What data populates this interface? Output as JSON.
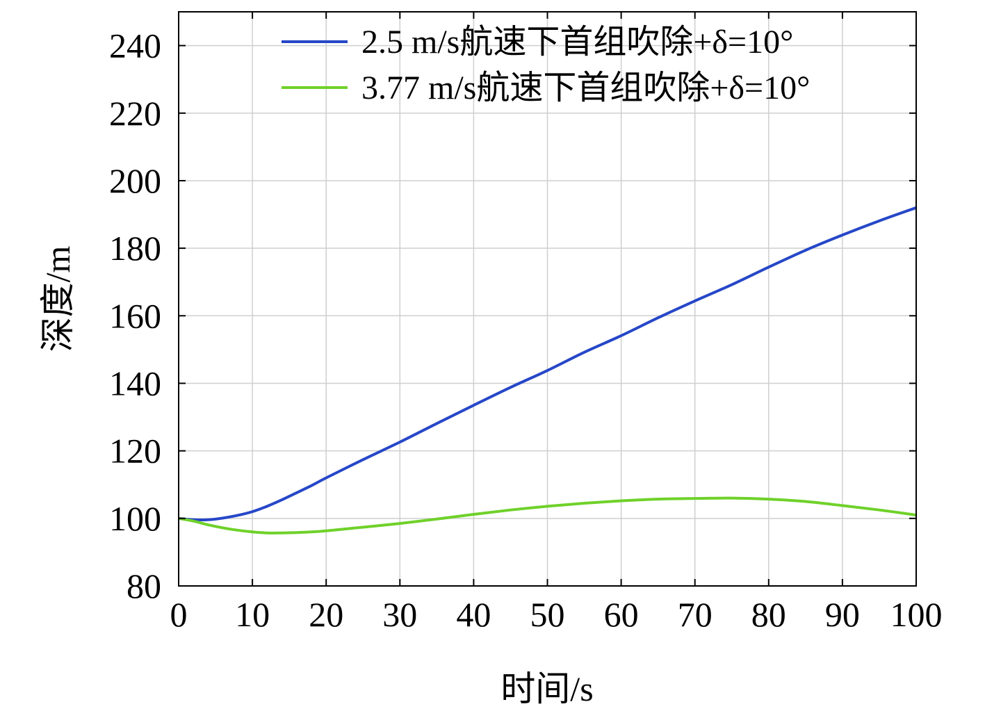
{
  "chart_data": {
    "type": "line",
    "xlabel": "时间/s",
    "ylabel": "深度/m",
    "xlim": [
      0,
      100
    ],
    "ylim": [
      80,
      250
    ],
    "xticks": [
      0,
      10,
      20,
      30,
      40,
      50,
      60,
      70,
      80,
      90,
      100
    ],
    "yticks": [
      80,
      100,
      120,
      140,
      160,
      180,
      200,
      220,
      240
    ],
    "grid": true,
    "legend_position": "top-right",
    "series": [
      {
        "name": "2.5 m/s航速下首组吹除+δ=10°",
        "color": "#2647c8",
        "x": [
          0,
          2,
          4,
          6,
          8,
          10,
          12,
          14,
          16,
          18,
          20,
          25,
          30,
          35,
          40,
          45,
          50,
          55,
          60,
          65,
          70,
          75,
          80,
          85,
          90,
          95,
          100
        ],
        "y": [
          100,
          99.6,
          99.6,
          100.1,
          100.9,
          102,
          103.6,
          105.5,
          107.6,
          109.7,
          112,
          117.4,
          122.6,
          128.1,
          133.5,
          138.8,
          143.8,
          149.2,
          154.1,
          159.4,
          164.4,
          169.2,
          174.4,
          179.4,
          183.9,
          188.1,
          192
        ]
      },
      {
        "name": "3.77 m/s航速下首组吹除+δ=10°",
        "color": "#6fd12a",
        "x": [
          0,
          2,
          4,
          6,
          8,
          10,
          12,
          14,
          16,
          18,
          20,
          25,
          30,
          35,
          40,
          45,
          50,
          55,
          60,
          65,
          70,
          75,
          80,
          85,
          90,
          95,
          100
        ],
        "y": [
          100,
          99.2,
          98.1,
          97.2,
          96.5,
          96.0,
          95.7,
          95.7,
          95.8,
          96.0,
          96.3,
          97.4,
          98.5,
          99.8,
          101.2,
          102.5,
          103.6,
          104.5,
          105.2,
          105.7,
          105.9,
          106.0,
          105.7,
          105.0,
          103.8,
          102.5,
          101
        ]
      }
    ]
  }
}
